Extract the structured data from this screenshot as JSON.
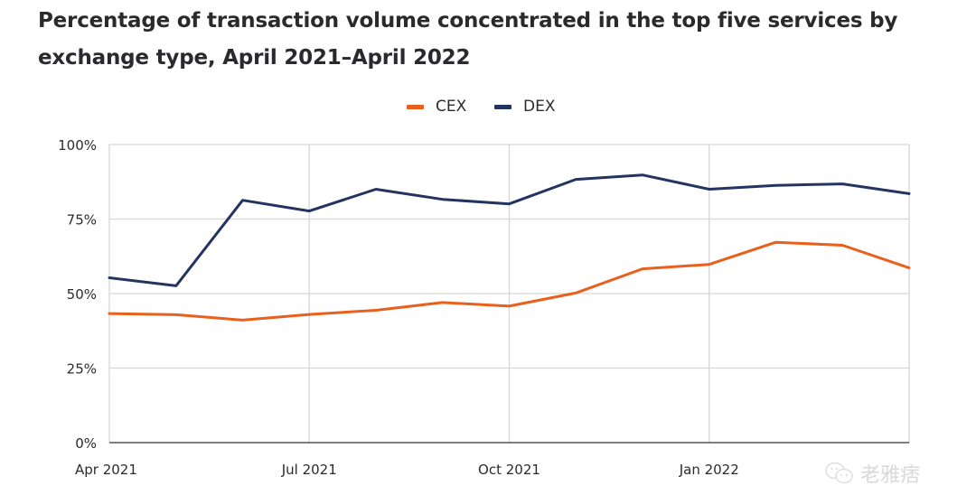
{
  "title": "Percentage of transaction volume concentrated in the top five services by exchange type, April 2021–April 2022",
  "watermark": {
    "text": "老雅痞",
    "icon": "wechat-icon"
  },
  "colors": {
    "CEX": "#E8601C",
    "DEX": "#243461",
    "grid": "#d6d6d6",
    "axis": "#555555"
  },
  "chart_data": {
    "type": "line",
    "title": "Percentage of transaction volume concentrated in the top five services by exchange type, April 2021–April 2022",
    "xlabel": "",
    "ylabel": "",
    "x": [
      "Apr 2021",
      "May 2021",
      "Jun 2021",
      "Jul 2021",
      "Aug 2021",
      "Sep 2021",
      "Oct 2021",
      "Nov 2021",
      "Dec 2021",
      "Jan 2022",
      "Feb 2022",
      "Mar 2022",
      "Apr 2022"
    ],
    "x_tick_labels": [
      "Apr 2021",
      "Jul 2021",
      "Oct 2021",
      "Jan 2022"
    ],
    "x_tick_indices": [
      0,
      3,
      6,
      9
    ],
    "ylim": [
      0,
      100
    ],
    "y_ticks": [
      0,
      25,
      50,
      75,
      100
    ],
    "y_tick_labels": [
      "0%",
      "25%",
      "50%",
      "75%",
      "100%"
    ],
    "grid": true,
    "legend": "top-center",
    "series": [
      {
        "name": "CEX",
        "color": "#E8601C",
        "values": [
          43.3,
          42.9,
          41.1,
          43.0,
          44.4,
          47.0,
          45.8,
          50.2,
          58.3,
          59.8,
          67.2,
          66.2,
          58.6
        ]
      },
      {
        "name": "DEX",
        "color": "#243461",
        "values": [
          55.3,
          52.6,
          81.3,
          77.7,
          85.0,
          81.6,
          80.1,
          88.3,
          89.8,
          85.0,
          86.3,
          86.8,
          83.5
        ]
      }
    ]
  }
}
